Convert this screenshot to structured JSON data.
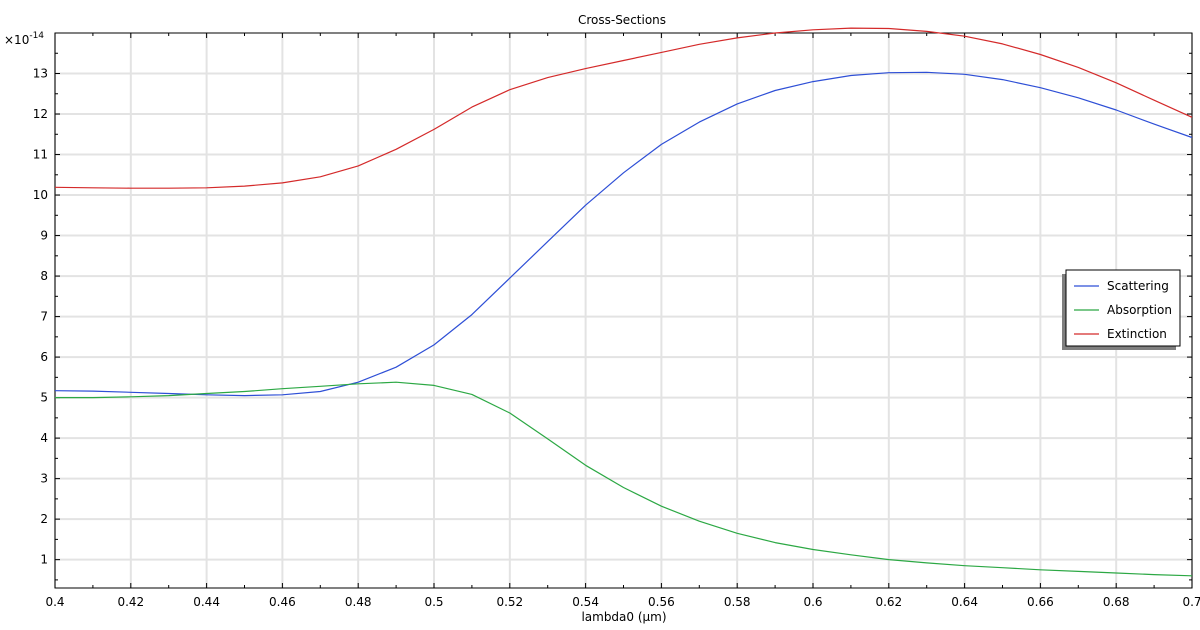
{
  "chart_data": {
    "type": "line",
    "title": "Cross-Sections",
    "xlabel": "lambda0 (µm)",
    "ylabel": "",
    "y_multiplier_label": "×10",
    "y_multiplier_exponent": "-14",
    "xlim": [
      0.4,
      0.7
    ],
    "ylim": [
      0.3,
      14.0
    ],
    "grid": true,
    "legend_position": "right",
    "x_ticks": [
      "0.4",
      "0.42",
      "0.44",
      "0.46",
      "0.48",
      "0.5",
      "0.52",
      "0.54",
      "0.56",
      "0.58",
      "0.6",
      "0.62",
      "0.64",
      "0.66",
      "0.68",
      "0.7"
    ],
    "y_ticks": [
      "1",
      "2",
      "3",
      "4",
      "5",
      "6",
      "7",
      "8",
      "9",
      "10",
      "11",
      "12",
      "13"
    ],
    "x": [
      0.4,
      0.41,
      0.42,
      0.43,
      0.44,
      0.45,
      0.46,
      0.47,
      0.48,
      0.49,
      0.5,
      0.51,
      0.52,
      0.53,
      0.54,
      0.55,
      0.56,
      0.57,
      0.58,
      0.59,
      0.6,
      0.61,
      0.62,
      0.63,
      0.64,
      0.65,
      0.66,
      0.67,
      0.68,
      0.69,
      0.7
    ],
    "series": [
      {
        "name": "Scattering",
        "color": "#2e4fd6",
        "values": [
          5.17,
          5.16,
          5.13,
          5.1,
          5.07,
          5.05,
          5.07,
          5.15,
          5.38,
          5.75,
          6.3,
          7.05,
          7.95,
          8.85,
          9.75,
          10.55,
          11.25,
          11.8,
          12.25,
          12.58,
          12.8,
          12.95,
          13.02,
          13.03,
          12.98,
          12.85,
          12.65,
          12.4,
          12.1,
          11.75,
          11.42
        ]
      },
      {
        "name": "Absorption",
        "color": "#2ca844",
        "values": [
          5.0,
          5.0,
          5.02,
          5.05,
          5.1,
          5.15,
          5.22,
          5.28,
          5.34,
          5.38,
          5.3,
          5.08,
          4.62,
          3.98,
          3.33,
          2.78,
          2.32,
          1.95,
          1.65,
          1.42,
          1.25,
          1.12,
          1.0,
          0.92,
          0.85,
          0.8,
          0.75,
          0.71,
          0.67,
          0.63,
          0.6
        ]
      },
      {
        "name": "Extinction",
        "color": "#d42a2a",
        "values": [
          10.19,
          10.18,
          10.17,
          10.17,
          10.18,
          10.22,
          10.3,
          10.45,
          10.72,
          11.13,
          11.62,
          12.17,
          12.6,
          12.9,
          13.12,
          13.32,
          13.52,
          13.72,
          13.88,
          14.0,
          14.08,
          14.12,
          14.11,
          14.04,
          13.92,
          13.73,
          13.47,
          13.15,
          12.77,
          12.34,
          11.92
        ]
      }
    ]
  }
}
